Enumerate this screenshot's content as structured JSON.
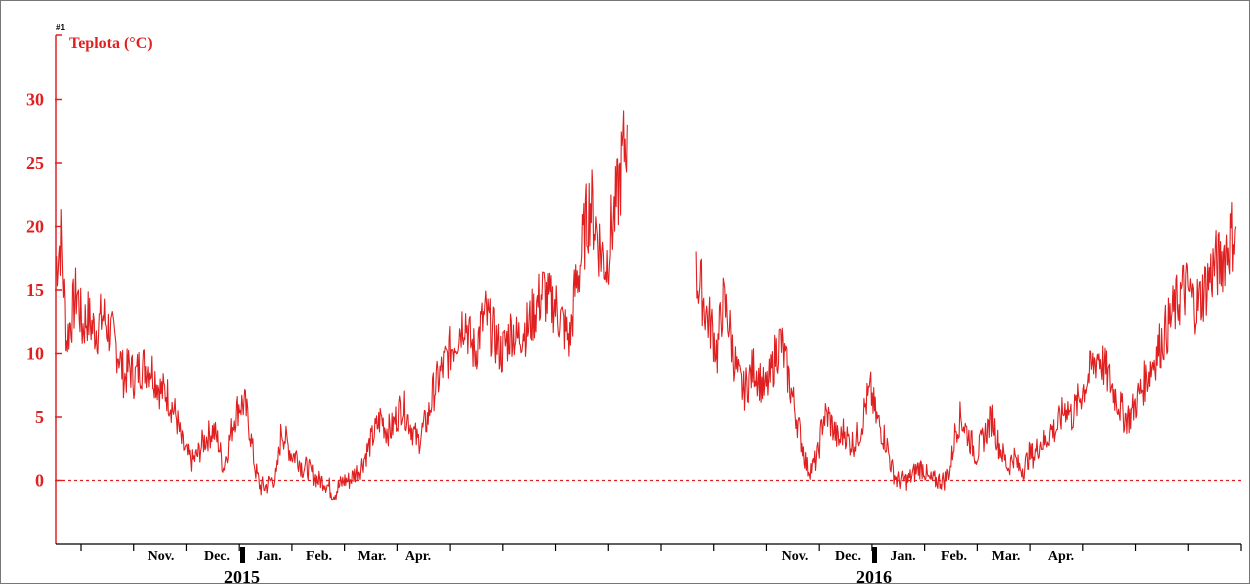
{
  "chart_data": {
    "type": "line",
    "title": "",
    "ylabel": "Teplota (°C)",
    "marker_label": "#1",
    "ylim": [
      -5,
      35
    ],
    "y_ticks": [
      0,
      5,
      10,
      15,
      20,
      25,
      30
    ],
    "reference_line": 0,
    "colors": {
      "series": "#e02020",
      "axis": "#e02020",
      "text": "#000000",
      "reference": "#e02020",
      "separator": "#000000"
    },
    "x_tick_count": 23,
    "months": [
      {
        "label": "Nov.",
        "period": 0
      },
      {
        "label": "Dec.",
        "period": 0
      },
      {
        "label": "Jan.",
        "period": 0
      },
      {
        "label": "Feb.",
        "period": 0
      },
      {
        "label": "Mar.",
        "period": 0
      },
      {
        "label": "Apr.",
        "period": 0
      },
      {
        "label": "Nov.",
        "period": 1
      },
      {
        "label": "Dec.",
        "period": 1
      },
      {
        "label": "Jan.",
        "period": 1
      },
      {
        "label": "Feb.",
        "period": 1
      },
      {
        "label": "Mar.",
        "period": 1
      },
      {
        "label": "Apr.",
        "period": 1
      }
    ],
    "years": [
      "2015",
      "2016"
    ],
    "series": [
      {
        "period": 0,
        "x_start": 0,
        "x_end": 108,
        "values": [
          17,
          19,
          11,
          13,
          15,
          12,
          13,
          12,
          12,
          13,
          12,
          11,
          10,
          8,
          9,
          8,
          9,
          9,
          9,
          8,
          7,
          7,
          6,
          5,
          3,
          2,
          1.5,
          2,
          3,
          3.5,
          4,
          3,
          1,
          3,
          5,
          6,
          6,
          4,
          1,
          -0.5,
          -0.5,
          0,
          0.3,
          4,
          3,
          2,
          2,
          1,
          1,
          0.5,
          0,
          0,
          -0.5,
          -1,
          -0.5,
          0,
          0,
          0.5,
          1,
          2,
          3,
          4,
          5,
          4,
          4,
          5,
          6,
          5,
          4,
          3,
          4,
          5,
          7,
          8,
          9,
          10,
          11,
          12,
          13,
          11,
          10,
          12,
          13,
          12,
          11,
          10,
          11,
          12,
          11,
          12,
          12,
          13,
          14,
          15,
          14,
          14,
          13,
          12,
          11,
          15,
          17,
          20,
          22,
          20,
          18,
          17,
          20,
          22,
          25,
          28
        ]
      },
      {
        "period": 1,
        "x_start": 121,
        "x_end": 223,
        "values": [
          16,
          15,
          13,
          12,
          10,
          14,
          13,
          10,
          8,
          7,
          8,
          9,
          8,
          7,
          8,
          10,
          11,
          9,
          7,
          5,
          3,
          1,
          1,
          2,
          5,
          5,
          4,
          3,
          4,
          3,
          3,
          4,
          6,
          7,
          5,
          4,
          3,
          1,
          0,
          0,
          0,
          0.5,
          1,
          1,
          0,
          0,
          0,
          0,
          1,
          4,
          5,
          4,
          3,
          2,
          3,
          4,
          5,
          3,
          2,
          1,
          2,
          1,
          1,
          2,
          2,
          3,
          3,
          4,
          4,
          5,
          6,
          5,
          6,
          7,
          8,
          9,
          10,
          9,
          8,
          7,
          6,
          5,
          5,
          6,
          7,
          8,
          9,
          10,
          11,
          12,
          13,
          14,
          15,
          15,
          14,
          14,
          15,
          16,
          17,
          17,
          18,
          19,
          20
        ]
      }
    ]
  }
}
